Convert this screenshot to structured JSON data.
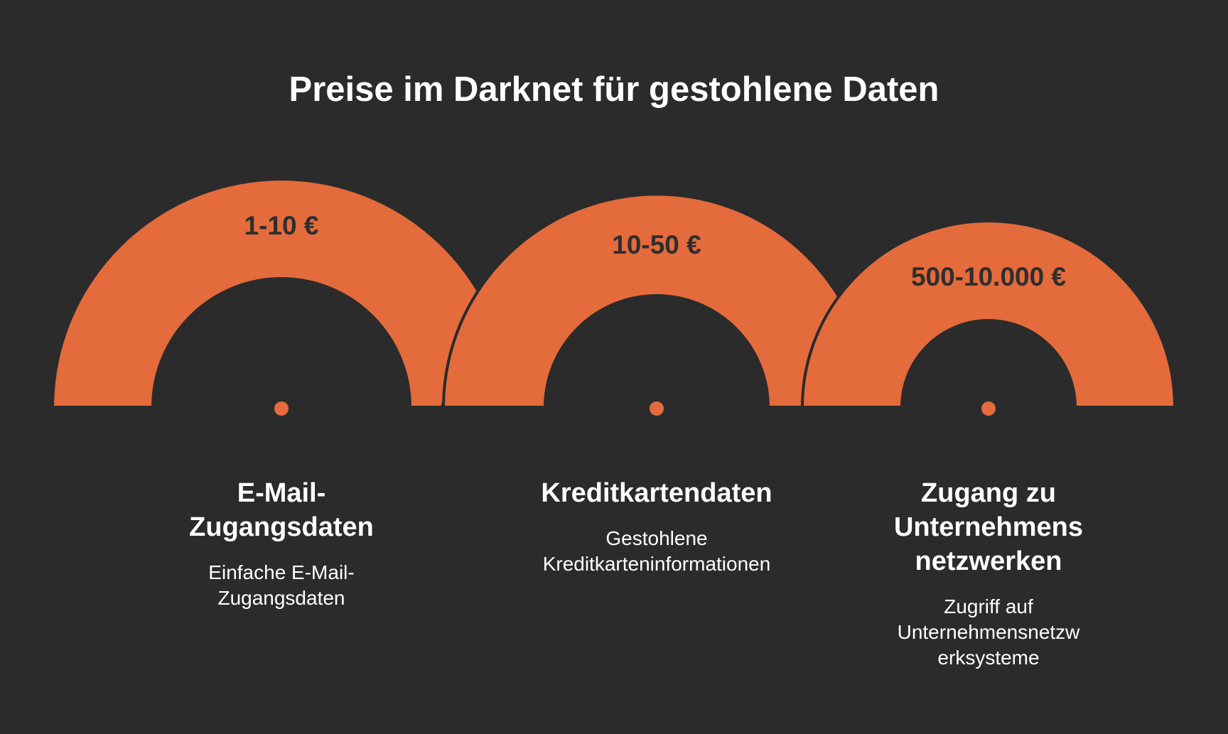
{
  "title": "Preise im Darknet für gestohlene Daten",
  "colors": {
    "background": "#2b2b2b",
    "arc": "#e46b3b",
    "price_text": "#2e2e2e",
    "text": "#ffffff"
  },
  "items": [
    {
      "price": "1-10 €",
      "title_lines": [
        "E-Mail-",
        "Zugangsdaten"
      ],
      "desc_lines": [
        "Einfache E-Mail-",
        "Zugangsdaten"
      ]
    },
    {
      "price": "10-50 €",
      "title_lines": [
        "Kreditkartendaten"
      ],
      "desc_lines": [
        "Gestohlene",
        "Kreditkarteninformationen"
      ]
    },
    {
      "price": "500-10.000 €",
      "title_lines": [
        "Zugang zu",
        "Unternehmens",
        "netzwerken"
      ],
      "desc_lines": [
        "Zugriff auf",
        "Unternehmensnetzw",
        "erksysteme"
      ]
    }
  ]
}
